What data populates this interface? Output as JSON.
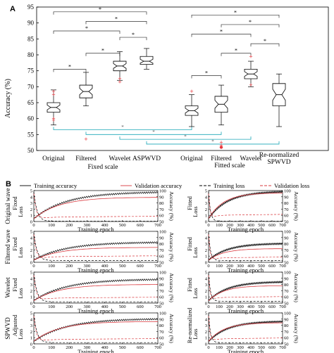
{
  "chart_data": [
    {
      "type": "box",
      "panel_label": "A",
      "ylabel": "Accuracy (%)",
      "ylim": [
        50,
        95
      ],
      "yticks": [
        50,
        55,
        60,
        65,
        70,
        75,
        80,
        85,
        90,
        95
      ],
      "groups": [
        {
          "label": "Fixed scale",
          "categories": [
            "Original",
            "Filtered",
            "Wavelet",
            "ASPWVD"
          ]
        },
        {
          "label": "Fitted scale",
          "categories": [
            "Original",
            "Filtered",
            "Wavelet",
            "Re-normalized\nSPWVD"
          ]
        }
      ],
      "boxes": [
        {
          "category": "Original",
          "group": "Fixed scale",
          "whisker_low": 58,
          "q1": 62,
          "median": 63.5,
          "q3": 65,
          "whisker_high": 69,
          "outliers": [
            59.5,
            60,
            67.5,
            68.5
          ]
        },
        {
          "category": "Filtered",
          "group": "Fixed scale",
          "whisker_low": 64,
          "q1": 66.5,
          "median": 68.5,
          "q3": 70.5,
          "whisker_high": 74.5,
          "outliers": [
            53.5
          ]
        },
        {
          "category": "Wavelet",
          "group": "Fixed scale",
          "whisker_low": 72,
          "q1": 75,
          "median": 76.5,
          "q3": 78,
          "whisker_high": 81,
          "outliers": [
            71.5,
            72.5
          ]
        },
        {
          "category": "ASPWVD",
          "group": "Fixed scale",
          "whisker_low": 75.5,
          "q1": 77,
          "median": 78,
          "q3": 79.5,
          "whisker_high": 82,
          "outliers": []
        },
        {
          "category": "Original",
          "group": "Fitted scale",
          "whisker_low": 57.5,
          "q1": 61,
          "median": 62.5,
          "q3": 64,
          "whisker_high": 67.5,
          "outliers": [
            68.5
          ]
        },
        {
          "category": "Filtered",
          "group": "Fitted scale",
          "whisker_low": 58,
          "q1": 62,
          "median": 64.5,
          "q3": 67,
          "whisker_high": 70.5,
          "outliers": [
            52.5,
            51.5,
            51
          ]
        },
        {
          "category": "Wavelet",
          "group": "Fitted scale",
          "whisker_low": 70,
          "q1": 72.5,
          "median": 74,
          "q3": 75.5,
          "whisker_high": 78,
          "outliers": [
            79.5,
            70.5
          ]
        },
        {
          "category": "Re-normalized\nSPWVD",
          "group": "Fitted scale",
          "whisker_low": 57.5,
          "q1": 64,
          "median": 67.5,
          "q3": 71,
          "whisker_high": 74,
          "outliers": []
        }
      ],
      "significance_marker": "*",
      "significance_brackets_black": [
        [
          0,
          1
        ],
        [
          1,
          2
        ],
        [
          2,
          3
        ],
        [
          0,
          2
        ],
        [
          1,
          3
        ],
        [
          0,
          3
        ],
        [
          4,
          5
        ],
        [
          5,
          6
        ],
        [
          6,
          7
        ],
        [
          4,
          6
        ],
        [
          5,
          7
        ],
        [
          4,
          7
        ]
      ],
      "significance_brackets_teal": [
        [
          0,
          4
        ],
        [
          1,
          5
        ],
        [
          2,
          6
        ],
        [
          3,
          7
        ]
      ]
    },
    {
      "type": "line",
      "panel_label": "B",
      "legend": [
        "Training accuracy",
        "Validation accuracy",
        "Training loss",
        "Validation loss"
      ],
      "row_labels": [
        "Original wave",
        "Filtered wave",
        "Wavelet",
        "SPWVD"
      ],
      "panel_titles": [
        [
          "Fixed",
          "Fitted"
        ],
        [
          "Fixed",
          "Fitted"
        ],
        [
          "Fixed",
          "Fitted"
        ],
        [
          "Adjusted",
          "Re-normalized"
        ]
      ],
      "xlabel": "Training epoch",
      "ylabel_left": "Loss",
      "ylabel_right": "Accuracy (%)",
      "xlim": [
        0,
        700
      ],
      "xticks": [
        0,
        100,
        200,
        300,
        400,
        500,
        600,
        700
      ],
      "loss_ylim": [
        0,
        5
      ],
      "loss_yticks": [
        0,
        1,
        2,
        3,
        4,
        5
      ],
      "acc_ylim": [
        50,
        100
      ],
      "acc_yticks": [
        50,
        60,
        70,
        80,
        90,
        100
      ],
      "subplots": [
        {
          "train_acc_final": 97,
          "val_acc_final": 89,
          "train_loss_final": 0.05,
          "val_loss_final": 0.7
        },
        {
          "train_acc_final": 98,
          "val_acc_final": 96,
          "train_loss_final": 0.05,
          "val_loss_final": 1.0
        },
        {
          "train_acc_final": 82,
          "val_acc_final": 74,
          "train_loss_final": 0.3,
          "val_loss_final": 0.9
        },
        {
          "train_acc_final": 80,
          "val_acc_final": 72,
          "train_loss_final": 0.3,
          "val_loss_final": 0.7
        },
        {
          "train_acc_final": 88,
          "val_acc_final": 80,
          "train_loss_final": 0.2,
          "val_loss_final": 0.8
        },
        {
          "train_acc_final": 84,
          "val_acc_final": 78,
          "train_loss_final": 0.3,
          "val_loss_final": 0.9
        },
        {
          "train_acc_final": 90,
          "val_acc_final": 86,
          "train_loss_final": 0.2,
          "val_loss_final": 0.7
        },
        {
          "train_acc_final": 86,
          "val_acc_final": 84,
          "train_loss_final": 0.2,
          "val_loss_final": 0.8
        }
      ]
    }
  ],
  "colors": {
    "axis": "#000000",
    "box_fill": "#ffffff",
    "outlier": "#e8383d",
    "bracket_teal": "#1aa6b7",
    "validation": "#d9383e",
    "training": "#000000"
  }
}
